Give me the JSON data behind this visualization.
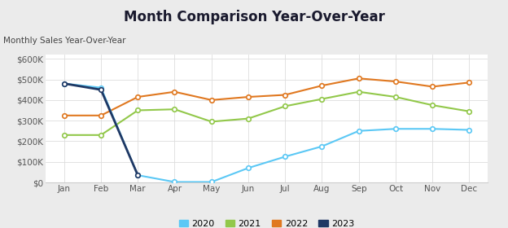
{
  "title": "Month Comparison Year-Over-Year",
  "subtitle": "Monthly Sales Year-Over-Year",
  "months": [
    "Jan",
    "Feb",
    "Mar",
    "Apr",
    "May",
    "Jun",
    "Jul",
    "Aug",
    "Sep",
    "Oct",
    "Nov",
    "Dec"
  ],
  "series": {
    "2020": [
      480000,
      460000,
      35000,
      2000,
      2000,
      70000,
      125000,
      175000,
      250000,
      260000,
      260000,
      255000
    ],
    "2021": [
      230000,
      230000,
      350000,
      355000,
      295000,
      310000,
      370000,
      405000,
      440000,
      415000,
      375000,
      345000
    ],
    "2022": [
      325000,
      325000,
      415000,
      440000,
      400000,
      415000,
      425000,
      470000,
      505000,
      490000,
      465000,
      485000
    ],
    "2023": [
      480000,
      450000,
      35000,
      null,
      null,
      null,
      null,
      null,
      null,
      null,
      null,
      null
    ]
  },
  "colors": {
    "2020": "#5BC8F5",
    "2021": "#92C84A",
    "2022": "#E07820",
    "2023": "#1F3864"
  },
  "ylim": [
    0,
    620000
  ],
  "yticks": [
    0,
    100000,
    200000,
    300000,
    400000,
    500000,
    600000
  ],
  "background_color": "#ebebeb",
  "plot_bg": "#ffffff",
  "title_fontsize": 12,
  "subtitle_fontsize": 7.5,
  "legend_labels": [
    "2020",
    "2021",
    "2022",
    "2023"
  ]
}
